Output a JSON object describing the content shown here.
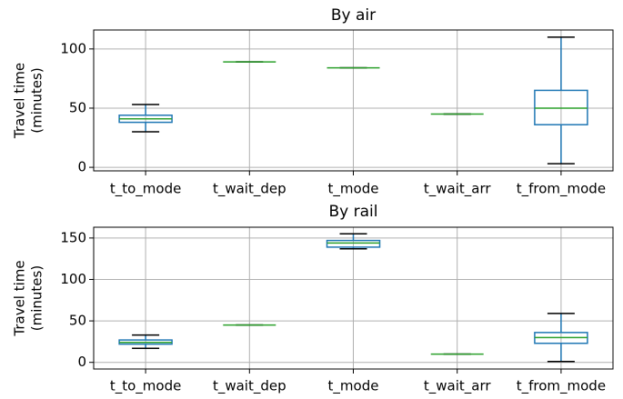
{
  "chart_data": [
    {
      "type": "box",
      "title": "By air",
      "ylabel": [
        "Travel time",
        "(minutes)"
      ],
      "categories": [
        "t_to_mode",
        "t_wait_dep",
        "t_mode",
        "t_wait_arr",
        "t_from_mode"
      ],
      "boxes": [
        {
          "whisker_low": 30,
          "q1": 38,
          "median": 41,
          "q3": 44,
          "whisker_high": 53
        },
        {
          "whisker_low": 89,
          "q1": 89,
          "median": 89,
          "q3": 89,
          "whisker_high": 89
        },
        {
          "whisker_low": 84,
          "q1": 84,
          "median": 84,
          "q3": 84,
          "whisker_high": 84
        },
        {
          "whisker_low": 45,
          "q1": 45,
          "median": 45,
          "q3": 45,
          "whisker_high": 45
        },
        {
          "whisker_low": 3,
          "q1": 36,
          "median": 50,
          "q3": 65,
          "whisker_high": 110
        }
      ],
      "box_color": "#1f77b4",
      "median_color": "#2ca02c",
      "cap_color": "#000000",
      "ylim": [
        -3,
        116
      ],
      "yticks": [
        0,
        50,
        100
      ],
      "grid": true
    },
    {
      "type": "box",
      "title": "By rail",
      "ylabel": [
        "Travel time",
        "(minutes)"
      ],
      "categories": [
        "t_to_mode",
        "t_wait_dep",
        "t_mode",
        "t_wait_arr",
        "t_from_mode"
      ],
      "boxes": [
        {
          "whisker_low": 17,
          "q1": 22,
          "median": 24,
          "q3": 27,
          "whisker_high": 33
        },
        {
          "whisker_low": 45,
          "q1": 45,
          "median": 45,
          "q3": 45,
          "whisker_high": 45
        },
        {
          "whisker_low": 137,
          "q1": 139,
          "median": 144,
          "q3": 147,
          "whisker_high": 155
        },
        {
          "whisker_low": 10,
          "q1": 10,
          "median": 10,
          "q3": 10,
          "whisker_high": 10
        },
        {
          "whisker_low": 1,
          "q1": 23,
          "median": 30,
          "q3": 36,
          "whisker_high": 59
        }
      ],
      "box_color": "#1f77b4",
      "median_color": "#2ca02c",
      "cap_color": "#000000",
      "ylim": [
        -8,
        163
      ],
      "yticks": [
        0,
        50,
        100,
        150
      ],
      "grid": true
    }
  ]
}
